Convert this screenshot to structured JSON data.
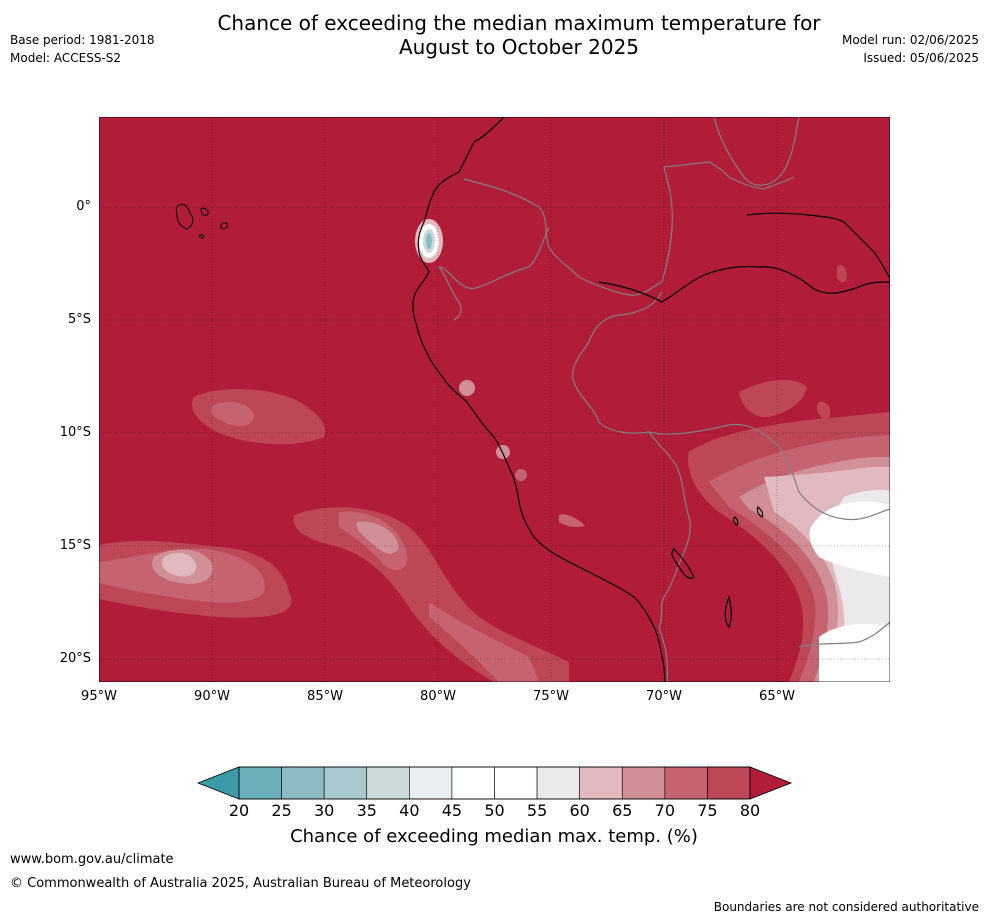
{
  "header": {
    "title_line1": "Chance of exceeding the median maximum temperature for",
    "title_line2": "August to October 2025",
    "base_period": "Base period: 1981-2018",
    "model": "Model: ACCESS-S2",
    "model_run": "Model run: 02/06/2025",
    "issued": "Issued: 05/06/2025"
  },
  "map": {
    "lat_labels": [
      "0°",
      "5°S",
      "10°S",
      "15°S",
      "20°S"
    ],
    "lon_labels": [
      "95°W",
      "90°W",
      "85°W",
      "80°W",
      "75°W",
      "70°W",
      "65°W"
    ],
    "background_color": "#b11c38",
    "coastline_color": "#000000",
    "border_color": "#808080"
  },
  "colorbar": {
    "ticks": [
      "20",
      "25",
      "30",
      "35",
      "40",
      "45",
      "50",
      "55",
      "60",
      "65",
      "70",
      "75",
      "80"
    ],
    "colors": [
      "#3c9aa9",
      "#6aaeba",
      "#8cbbc4",
      "#a9c8cd",
      "#ccd9db",
      "#e9eef0",
      "#ffffff",
      "#ffffff",
      "#ebe9ea",
      "#e1b9be",
      "#d18f97",
      "#c56470",
      "#bd4756",
      "#b11c38"
    ],
    "title": "Chance of exceeding median max. temp. (%)"
  },
  "footer": {
    "website": "www.bom.gov.au/climate",
    "copyright": "© Commonwealth of Australia 2025, Australian Bureau of Meteorology",
    "disclaimer": "Boundaries are not considered authoritative"
  }
}
